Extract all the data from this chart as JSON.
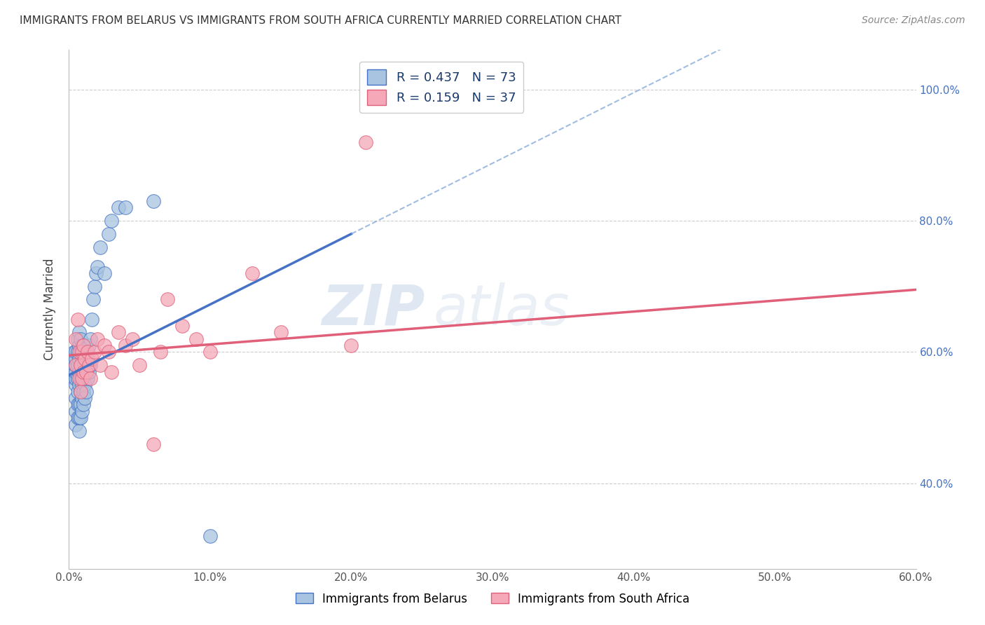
{
  "title": "IMMIGRANTS FROM BELARUS VS IMMIGRANTS FROM SOUTH AFRICA CURRENTLY MARRIED CORRELATION CHART",
  "source": "Source: ZipAtlas.com",
  "xlabel_ticks": [
    "0.0%",
    "10.0%",
    "20.0%",
    "30.0%",
    "40.0%",
    "50.0%",
    "60.0%"
  ],
  "ylabel_ticks": [
    "40.0%",
    "60.0%",
    "80.0%",
    "100.0%"
  ],
  "xlim": [
    0.0,
    0.6
  ],
  "ylim": [
    0.27,
    1.06
  ],
  "legend_r1": "R = 0.437",
  "legend_n1": "N = 73",
  "legend_r2": "R = 0.159",
  "legend_n2": "N = 37",
  "belarus_color": "#a8c4e0",
  "s_africa_color": "#f4a8b8",
  "trend_blue": "#4472c4",
  "trend_pink": "#e0607a",
  "trend_dashed_color": "#8aabda",
  "belarus_x": [
    0.004,
    0.004,
    0.004,
    0.004,
    0.004,
    0.005,
    0.005,
    0.005,
    0.005,
    0.005,
    0.005,
    0.005,
    0.005,
    0.005,
    0.006,
    0.006,
    0.006,
    0.006,
    0.006,
    0.006,
    0.006,
    0.007,
    0.007,
    0.007,
    0.007,
    0.007,
    0.007,
    0.007,
    0.007,
    0.008,
    0.008,
    0.008,
    0.008,
    0.008,
    0.008,
    0.008,
    0.009,
    0.009,
    0.009,
    0.009,
    0.009,
    0.009,
    0.01,
    0.01,
    0.01,
    0.01,
    0.01,
    0.011,
    0.011,
    0.011,
    0.011,
    0.012,
    0.012,
    0.012,
    0.013,
    0.013,
    0.014,
    0.014,
    0.015,
    0.015,
    0.016,
    0.017,
    0.018,
    0.019,
    0.02,
    0.022,
    0.025,
    0.028,
    0.03,
    0.035,
    0.04,
    0.06,
    0.1
  ],
  "belarus_y": [
    0.56,
    0.57,
    0.58,
    0.59,
    0.6,
    0.49,
    0.51,
    0.53,
    0.55,
    0.56,
    0.57,
    0.58,
    0.59,
    0.6,
    0.5,
    0.52,
    0.54,
    0.56,
    0.58,
    0.6,
    0.62,
    0.48,
    0.5,
    0.52,
    0.55,
    0.57,
    0.59,
    0.61,
    0.63,
    0.5,
    0.52,
    0.54,
    0.56,
    0.58,
    0.6,
    0.62,
    0.51,
    0.53,
    0.55,
    0.57,
    0.59,
    0.61,
    0.52,
    0.54,
    0.56,
    0.59,
    0.61,
    0.53,
    0.55,
    0.58,
    0.6,
    0.54,
    0.57,
    0.6,
    0.56,
    0.59,
    0.57,
    0.61,
    0.58,
    0.62,
    0.65,
    0.68,
    0.7,
    0.72,
    0.73,
    0.76,
    0.72,
    0.78,
    0.8,
    0.82,
    0.82,
    0.83,
    0.32
  ],
  "safrica_x": [
    0.005,
    0.005,
    0.006,
    0.007,
    0.007,
    0.008,
    0.008,
    0.009,
    0.009,
    0.01,
    0.01,
    0.011,
    0.012,
    0.013,
    0.014,
    0.015,
    0.016,
    0.018,
    0.02,
    0.022,
    0.025,
    0.028,
    0.03,
    0.035,
    0.04,
    0.045,
    0.05,
    0.06,
    0.065,
    0.07,
    0.08,
    0.09,
    0.1,
    0.13,
    0.15,
    0.2,
    0.21
  ],
  "safrica_y": [
    0.58,
    0.62,
    0.65,
    0.56,
    0.6,
    0.54,
    0.58,
    0.56,
    0.6,
    0.57,
    0.61,
    0.59,
    0.57,
    0.6,
    0.58,
    0.56,
    0.59,
    0.6,
    0.62,
    0.58,
    0.61,
    0.6,
    0.57,
    0.63,
    0.61,
    0.62,
    0.58,
    0.46,
    0.6,
    0.68,
    0.64,
    0.62,
    0.6,
    0.72,
    0.63,
    0.61,
    0.92
  ],
  "trend_blue_x0": 0.0,
  "trend_blue_y0": 0.565,
  "trend_blue_x1": 0.2,
  "trend_blue_y1": 0.78,
  "trend_dash_x0": 0.2,
  "trend_dash_x1": 0.6,
  "trend_pink_x0": 0.0,
  "trend_pink_y0": 0.595,
  "trend_pink_x1": 0.6,
  "trend_pink_y1": 0.695
}
